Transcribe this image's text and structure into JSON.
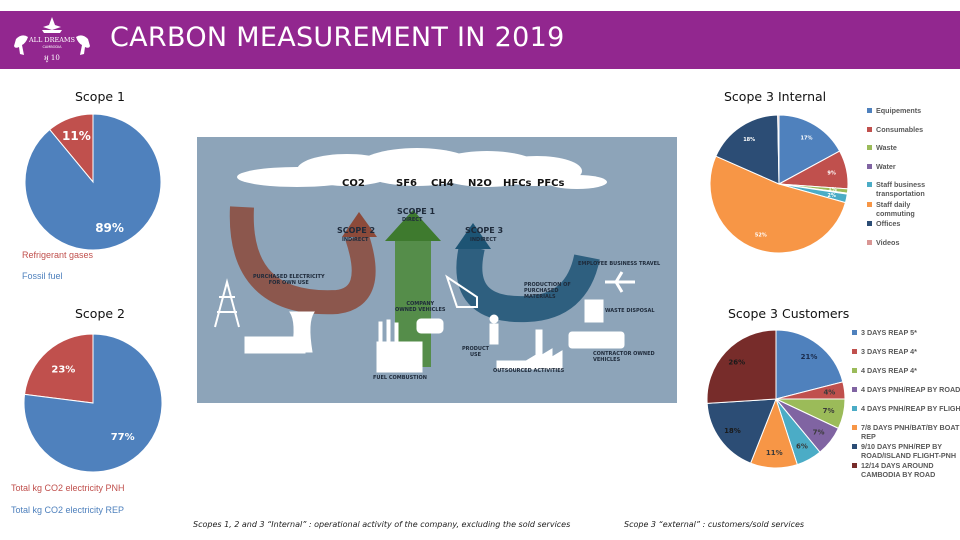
{
  "header": {
    "title": "CARBON MEASUREMENT IN 2019",
    "logo": {
      "name": "ALL DREAMS",
      "sub": "CAMBODIA",
      "tag": "10 years",
      "brand_color": "#92278f"
    }
  },
  "chart_data": [
    {
      "type": "pie",
      "id": "scope1",
      "title": "Scope 1",
      "slices": [
        {
          "label": "Refrigerant gases",
          "value": 11,
          "display": "11%",
          "color": "#c0504d"
        },
        {
          "label": "Fossil fuel",
          "value": 89,
          "display": "89%",
          "color": "#4f81bd"
        }
      ],
      "legend_placement": "bottom",
      "start": "top, clockwise, red slice counter-clockwise"
    },
    {
      "type": "pie",
      "id": "scope2",
      "title": "Scope 2",
      "slices": [
        {
          "label": "Total kg CO2 electricity PNH",
          "value": 23,
          "display": "23%",
          "color": "#c0504d"
        },
        {
          "label": "Total kg CO2 electricity REP",
          "value": 77,
          "display": "77%",
          "color": "#4f81bd"
        }
      ],
      "legend_placement": "bottom"
    },
    {
      "type": "pie",
      "id": "scope3_internal",
      "title": "Scope 3 Internal",
      "slices": [
        {
          "label": "Equipements",
          "value": 17,
          "display": "17%",
          "color": "#4f81bd"
        },
        {
          "label": "Consumables",
          "value": 9,
          "display": "9%",
          "color": "#c0504d"
        },
        {
          "label": "Waste",
          "value": 1,
          "display": "1%",
          "color": "#9bbb59"
        },
        {
          "label": "Water",
          "value": 0.2,
          "display": "",
          "color": "#8064a2"
        },
        {
          "label": "Staff business transportation",
          "value": 2,
          "display": "2%",
          "color": "#4bacc6"
        },
        {
          "label": "Staff daily commuting",
          "value": 52,
          "display": "52%",
          "color": "#f79646"
        },
        {
          "label": "Offices",
          "value": 18,
          "display": "18%",
          "color": "#2c4d75"
        },
        {
          "label": "Videos",
          "value": 0.3,
          "display": "",
          "color": "#d99694"
        }
      ],
      "legend_placement": "right"
    },
    {
      "type": "pie",
      "id": "scope3_customers",
      "title": "Scope 3 Customers",
      "slices": [
        {
          "label": "3 DAYS REAP 5*",
          "value": 21,
          "display": "21%",
          "color": "#4f81bd"
        },
        {
          "label": "3 DAYS REAP 4*",
          "value": 4,
          "display": "4%",
          "color": "#c0504d"
        },
        {
          "label": "4 DAYS REAP 4*",
          "value": 7,
          "display": "7%",
          "color": "#9bbb59"
        },
        {
          "label": "4 DAYS PNH/REAP BY ROAD",
          "value": 7,
          "display": "7%",
          "color": "#8064a2"
        },
        {
          "label": "4 DAYS PNH/REAP BY FLIGHT",
          "value": 6,
          "display": "6%",
          "color": "#4bacc6"
        },
        {
          "label": "7/8 DAYS PNH/BAT/BY BOAT REP",
          "value": 11,
          "display": "11%",
          "color": "#f79646"
        },
        {
          "label": "9/10 DAYS PNH/REP BY ROAD/ISLAND FLIGHT-PNH",
          "value": 18,
          "display": "18%",
          "color": "#2c4d75"
        },
        {
          "label": "12/14 DAYS AROUND CAMBODIA BY ROAD",
          "value": 26,
          "display": "26%",
          "color": "#772c2a"
        }
      ],
      "legend_placement": "right"
    }
  ],
  "legend_lines": {
    "scope3_internal": [
      "Equipements",
      "Consumables",
      "Waste",
      "Water",
      "Staff business\ntransportation",
      "Staff daily\ncommuting",
      "Offices",
      "Videos"
    ],
    "scope3_customers": [
      "3 DAYS REAP 5*",
      "3 DAYS REAP 4*",
      "4 DAYS REAP 4*",
      "4 DAYS PNH/REAP BY ROAD",
      "4 DAYS PNH/REAP BY FLIGHT",
      "7/8 DAYS PNH/BAT/BY BOAT\nREP",
      "9/10 DAYS PNH/REP BY\nROAD/ISLAND FLIGHT-PNH",
      "12/14 DAYS AROUND\nCAMBODIA BY ROAD"
    ]
  },
  "diagram": {
    "gases": [
      "CO2",
      "SF6",
      "CH4",
      "N2O",
      "HFCs",
      "PFCs"
    ],
    "scope1": {
      "title": "SCOPE 1",
      "sub": "DIRECT",
      "color": "#3e7a2e"
    },
    "scope2": {
      "title": "SCOPE 2",
      "sub": "INDIRECT",
      "color": "#8c4a3a"
    },
    "scope3": {
      "title": "SCOPE 3",
      "sub": "INDIRECT",
      "color": "#1d5474"
    },
    "labels": {
      "purchased_electricity": "PURCHASED ELECTRICITY\nFOR OWN USE",
      "company_vehicles": "COMPANY\nOWNED VEHICLES",
      "fuel_combustion": "FUEL COMBUSTION",
      "production": "PRODUCTION OF\nPURCHASED\nMATERIALS",
      "product_use": "PRODUCT\nUSE",
      "outsourced": "OUTSOURCED ACTIVITIES",
      "employee_travel": "EMPLOYEE BUSINESS TRAVEL",
      "waste_disposal": "WASTE DISPOSAL",
      "contractor_vehicles": "CONTRACTOR OWNED\nVEHICLES"
    }
  },
  "footnotes": {
    "internal": "Scopes 1, 2 and 3 “Internal” : operational activity of the company, excluding the sold services",
    "external": "Scope 3 “external” : customers/sold services"
  }
}
